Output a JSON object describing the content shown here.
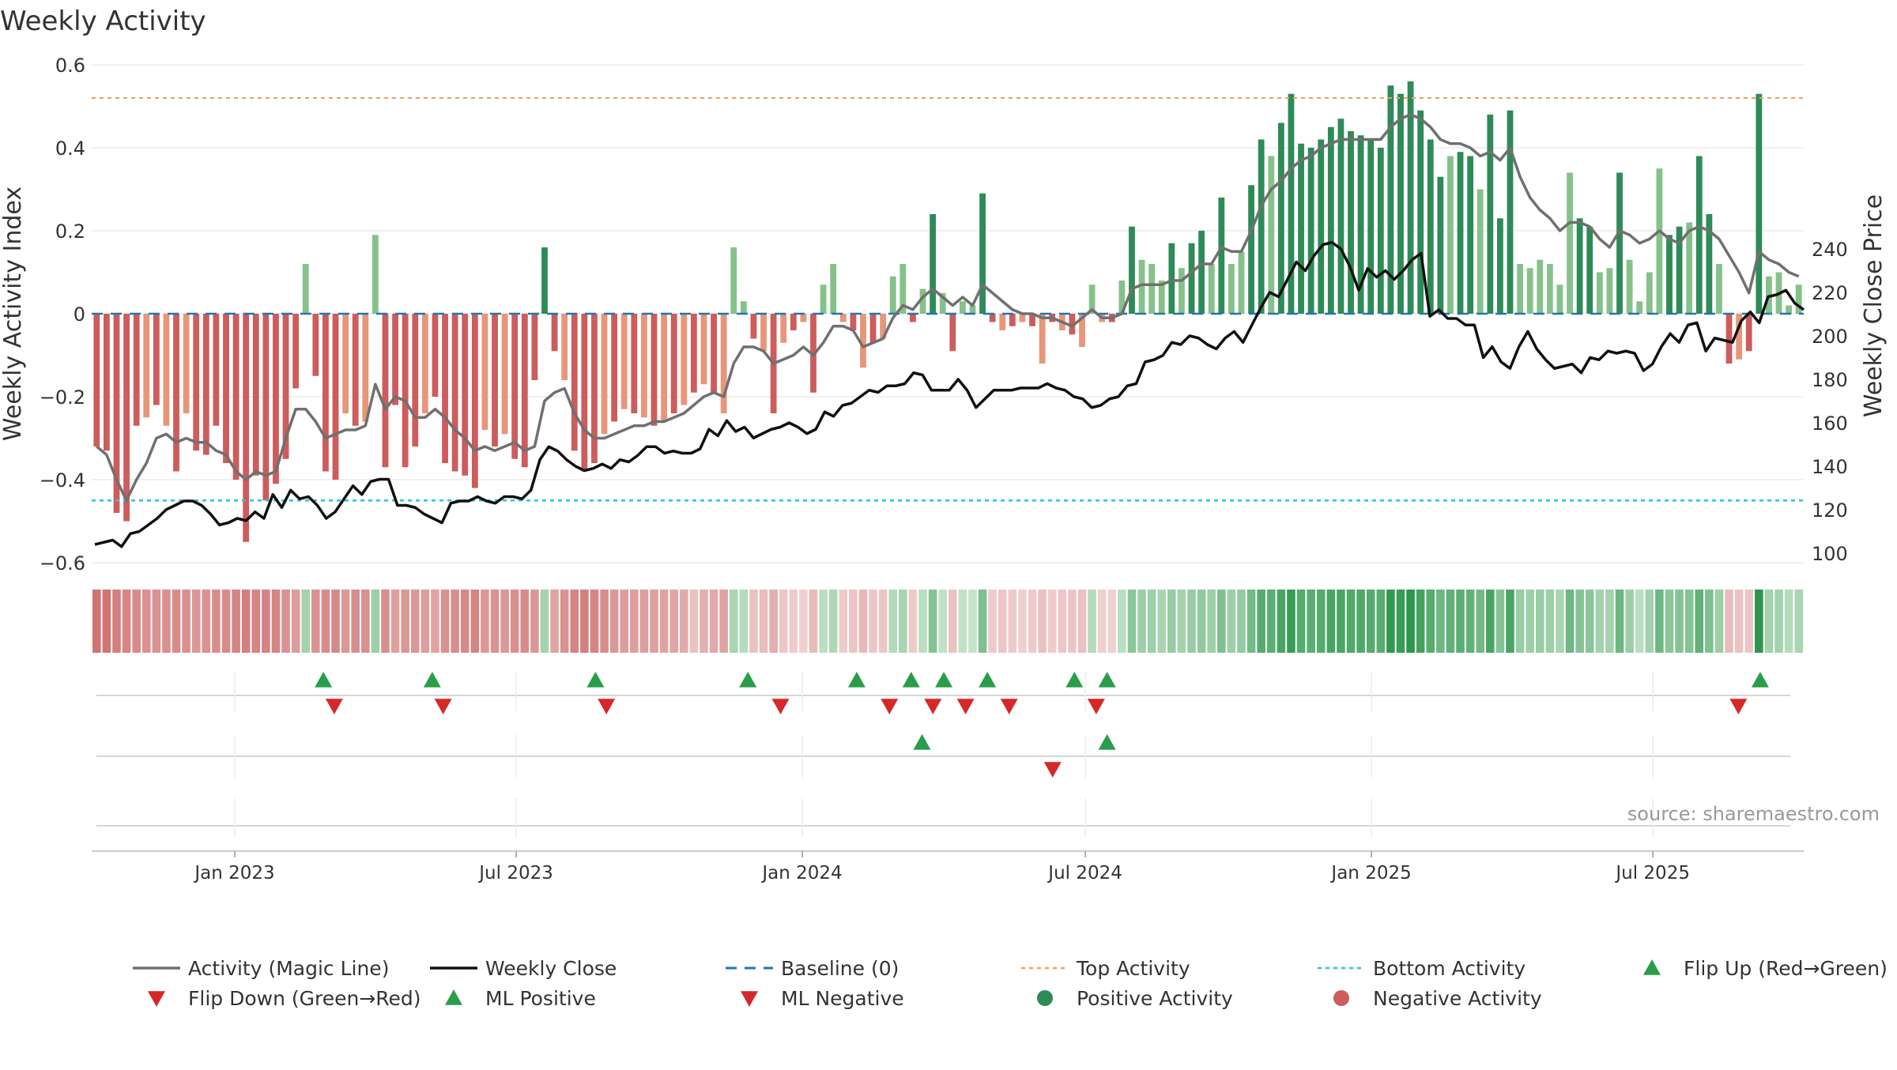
{
  "chart_data": {
    "type": "bar",
    "title": "Weekly Activity",
    "ylabel": "Weekly Activity Index",
    "y2label": "Weekly Close Price",
    "ylim": [
      -0.6,
      0.6
    ],
    "y2lim": [
      100,
      240
    ],
    "yticks": [
      "0.6",
      "0.4",
      "0.2",
      "0",
      "−0.2",
      "−0.4",
      "−0.6"
    ],
    "y2ticks": [
      "240",
      "220",
      "200",
      "180",
      "160",
      "140",
      "120",
      "100"
    ],
    "x_ticks": [
      "Jan 2023",
      "Jul 2023",
      "Jan 2024",
      "Jul 2024",
      "Jan 2025",
      "Jul 2025"
    ],
    "x_start": "2022-10-01",
    "x_end": "2025-10-06",
    "top_activity": 0.52,
    "bottom_activity": -0.45,
    "source_text": "source: sharemaestro.com",
    "colors": {
      "pos_dark": "#2e8b57",
      "pos_light": "#86c18b",
      "neg_dark": "#cd5c5c",
      "neg_light": "#e8967a",
      "magic_line": "#707070",
      "close_line": "#111111",
      "baseline": "#1f77b4",
      "top": "#f0a060",
      "bottom": "#26c6da",
      "flip_up": "#2a9d4a",
      "flip_down": "#d62828"
    },
    "activity": [
      -0.32,
      -0.33,
      -0.48,
      -0.5,
      -0.27,
      -0.25,
      -0.22,
      -0.27,
      -0.38,
      -0.24,
      -0.33,
      -0.34,
      -0.27,
      -0.36,
      -0.4,
      -0.55,
      -0.39,
      -0.45,
      -0.41,
      -0.35,
      -0.18,
      0.12,
      -0.15,
      -0.38,
      -0.4,
      -0.24,
      -0.27,
      -0.26,
      0.19,
      -0.37,
      -0.22,
      -0.37,
      -0.32,
      -0.24,
      -0.2,
      -0.36,
      -0.38,
      -0.39,
      -0.42,
      -0.28,
      -0.32,
      -0.29,
      -0.35,
      -0.37,
      -0.16,
      0.16,
      -0.09,
      -0.16,
      -0.33,
      -0.38,
      -0.36,
      -0.29,
      -0.26,
      -0.23,
      -0.24,
      -0.25,
      -0.27,
      -0.26,
      -0.24,
      -0.22,
      -0.19,
      -0.17,
      -0.19,
      -0.24,
      0.16,
      0.03,
      -0.06,
      -0.09,
      -0.24,
      -0.07,
      -0.04,
      -0.02,
      -0.19,
      0.07,
      0.12,
      -0.02,
      -0.04,
      -0.13,
      -0.07,
      -0.06,
      0.09,
      0.12,
      -0.02,
      0.06,
      0.24,
      0.05,
      -0.09,
      0.03,
      0.02,
      0.29,
      -0.02,
      -0.04,
      -0.03,
      -0.02,
      -0.03,
      -0.12,
      -0.02,
      -0.04,
      -0.05,
      -0.08,
      0.07,
      -0.02,
      -0.02,
      0.08,
      0.21,
      0.13,
      0.12,
      0.08,
      0.17,
      0.11,
      0.17,
      0.2,
      0.12,
      0.28,
      0.12,
      0.15,
      0.31,
      0.42,
      0.38,
      0.46,
      0.53,
      0.41,
      0.4,
      0.42,
      0.45,
      0.47,
      0.44,
      0.43,
      0.42,
      0.4,
      0.55,
      0.53,
      0.56,
      0.49,
      0.42,
      0.33,
      0.38,
      0.39,
      0.38,
      0.3,
      0.48,
      0.23,
      0.49,
      0.12,
      0.11,
      0.13,
      0.12,
      0.07,
      0.34,
      0.23,
      0.21,
      0.1,
      0.11,
      0.34,
      0.13,
      0.03,
      0.1,
      0.35,
      0.19,
      0.21,
      0.22,
      0.38,
      0.24,
      0.12,
      -0.12,
      -0.11,
      -0.09,
      0.53,
      0.09,
      0.1,
      0.02,
      0.07
    ],
    "magic_line": [
      -0.32,
      -0.34,
      -0.4,
      -0.45,
      -0.4,
      -0.36,
      -0.3,
      -0.29,
      -0.31,
      -0.3,
      -0.31,
      -0.31,
      -0.33,
      -0.34,
      -0.38,
      -0.4,
      -0.38,
      -0.39,
      -0.38,
      -0.3,
      -0.23,
      -0.23,
      -0.26,
      -0.3,
      -0.29,
      -0.28,
      -0.28,
      -0.27,
      -0.17,
      -0.23,
      -0.2,
      -0.21,
      -0.25,
      -0.25,
      -0.23,
      -0.25,
      -0.28,
      -0.3,
      -0.33,
      -0.32,
      -0.33,
      -0.32,
      -0.31,
      -0.33,
      -0.32,
      -0.21,
      -0.19,
      -0.18,
      -0.24,
      -0.28,
      -0.3,
      -0.3,
      -0.29,
      -0.28,
      -0.27,
      -0.27,
      -0.26,
      -0.26,
      -0.25,
      -0.24,
      -0.22,
      -0.2,
      -0.19,
      -0.2,
      -0.12,
      -0.08,
      -0.08,
      -0.09,
      -0.12,
      -0.11,
      -0.1,
      -0.08,
      -0.1,
      -0.07,
      -0.03,
      -0.03,
      -0.04,
      -0.08,
      -0.07,
      -0.06,
      -0.01,
      0.02,
      0.01,
      0.04,
      0.06,
      0.04,
      0.02,
      0.04,
      0.02,
      0.07,
      0.05,
      0.03,
      0.01,
      0.0,
      0.0,
      -0.01,
      -0.01,
      -0.02,
      -0.03,
      -0.01,
      0.01,
      -0.01,
      -0.01,
      0.0,
      0.06,
      0.07,
      0.07,
      0.07,
      0.08,
      0.08,
      0.1,
      0.12,
      0.12,
      0.16,
      0.15,
      0.15,
      0.2,
      0.26,
      0.3,
      0.32,
      0.35,
      0.37,
      0.38,
      0.4,
      0.41,
      0.42,
      0.42,
      0.42,
      0.42,
      0.42,
      0.45,
      0.47,
      0.48,
      0.47,
      0.45,
      0.42,
      0.41,
      0.41,
      0.4,
      0.38,
      0.39,
      0.37,
      0.4,
      0.33,
      0.28,
      0.25,
      0.23,
      0.2,
      0.22,
      0.22,
      0.21,
      0.18,
      0.16,
      0.2,
      0.19,
      0.17,
      0.18,
      0.2,
      0.18,
      0.17,
      0.2,
      0.21,
      0.2,
      0.18,
      0.14,
      0.1,
      0.05,
      0.15,
      0.13,
      0.12,
      0.1,
      0.09
    ],
    "weekly_close": [
      104,
      105,
      106,
      103,
      109,
      110,
      113,
      116,
      120,
      122,
      124,
      124,
      122,
      118,
      113,
      114,
      116,
      115,
      119,
      116,
      127,
      121,
      129,
      125,
      126,
      122,
      116,
      119,
      125,
      131,
      127,
      133,
      134,
      134,
      122,
      122,
      121,
      118,
      116,
      114,
      123,
      124,
      124,
      126,
      124,
      123,
      126,
      126,
      125,
      129,
      143,
      149,
      147,
      143,
      140,
      138,
      139,
      141,
      139,
      143,
      142,
      145,
      149,
      149,
      146,
      147,
      146,
      146,
      148,
      157,
      154,
      161,
      156,
      158,
      153,
      155,
      157,
      158,
      160,
      158,
      155,
      157,
      165,
      163,
      168,
      169,
      172,
      175,
      174,
      177,
      177,
      178,
      183,
      182,
      175,
      175,
      175,
      180,
      175,
      167,
      171,
      175,
      175,
      175,
      176,
      176,
      176,
      178,
      176,
      175,
      172,
      171,
      167,
      168,
      171,
      172,
      177,
      178,
      188,
      189,
      191,
      197,
      196,
      200,
      199,
      196,
      194,
      199,
      202,
      197,
      205,
      213,
      220,
      218,
      226,
      234,
      230,
      237,
      242,
      243,
      240,
      232,
      221,
      231,
      227,
      230,
      226,
      230,
      235,
      238,
      209,
      212,
      208,
      208,
      205,
      205,
      190,
      195,
      188,
      185,
      195,
      202,
      194,
      189,
      185,
      186,
      187,
      183,
      190,
      189,
      193,
      192,
      193,
      192,
      184,
      187,
      195,
      201,
      197,
      205,
      206,
      193,
      199,
      198,
      197,
      207,
      211,
      206,
      218,
      219,
      221,
      215,
      212
    ],
    "gradient_strip": [
      -0.45,
      -0.45,
      -0.4,
      -0.38,
      -0.35,
      -0.32,
      -0.32,
      -0.33,
      -0.35,
      -0.33,
      -0.3,
      -0.32,
      -0.34,
      -0.35,
      -0.38,
      -0.4,
      -0.38,
      -0.39,
      -0.38,
      -0.32,
      -0.28,
      0.2,
      -0.32,
      -0.35,
      -0.36,
      -0.3,
      -0.34,
      -0.33,
      0.22,
      -0.34,
      -0.26,
      -0.3,
      -0.3,
      -0.28,
      -0.25,
      -0.32,
      -0.34,
      -0.36,
      -0.38,
      -0.3,
      -0.32,
      -0.3,
      -0.33,
      -0.35,
      -0.3,
      0.2,
      -0.25,
      -0.32,
      -0.38,
      -0.4,
      -0.38,
      -0.34,
      -0.3,
      -0.28,
      -0.27,
      -0.27,
      -0.26,
      -0.25,
      -0.24,
      -0.22,
      -0.12,
      -0.2,
      -0.22,
      -0.25,
      0.18,
      0.14,
      -0.12,
      -0.14,
      -0.2,
      -0.1,
      -0.08,
      -0.06,
      -0.15,
      0.12,
      0.16,
      -0.08,
      -0.1,
      -0.16,
      -0.1,
      -0.1,
      0.15,
      0.18,
      -0.08,
      0.12,
      0.3,
      0.1,
      -0.12,
      0.1,
      0.08,
      0.32,
      -0.08,
      -0.1,
      -0.08,
      -0.06,
      -0.08,
      -0.12,
      -0.08,
      -0.1,
      -0.1,
      -0.12,
      0.14,
      -0.06,
      -0.05,
      0.12,
      0.28,
      0.22,
      0.22,
      0.18,
      0.24,
      0.2,
      0.24,
      0.26,
      0.22,
      0.32,
      0.22,
      0.25,
      0.36,
      0.46,
      0.44,
      0.5,
      0.56,
      0.46,
      0.44,
      0.46,
      0.5,
      0.5,
      0.48,
      0.48,
      0.46,
      0.45,
      0.58,
      0.56,
      0.6,
      0.52,
      0.46,
      0.38,
      0.42,
      0.44,
      0.42,
      0.36,
      0.5,
      0.3,
      0.5,
      0.24,
      0.22,
      0.24,
      0.22,
      0.18,
      0.38,
      0.3,
      0.28,
      0.2,
      0.2,
      0.38,
      0.22,
      0.12,
      0.2,
      0.38,
      0.28,
      0.3,
      0.3,
      0.42,
      0.32,
      0.22,
      -0.14,
      -0.12,
      -0.1,
      0.6,
      0.2,
      0.2,
      0.14,
      0.18
    ],
    "flip_up_dates": [
      "2023-02-27",
      "2023-05-08",
      "2023-08-21",
      "2023-11-27",
      "2024-02-05",
      "2024-03-11",
      "2024-04-01",
      "2024-04-29",
      "2024-06-24",
      "2024-07-15",
      "2025-09-08"
    ],
    "flip_down_dates": [
      "2023-03-06",
      "2023-05-15",
      "2023-08-28",
      "2023-12-18",
      "2024-02-26",
      "2024-03-25",
      "2024-04-15",
      "2024-05-13",
      "2024-07-08",
      "2025-08-25"
    ],
    "ml_positive_dates": [
      "2024-03-18",
      "2024-07-15"
    ],
    "ml_negative_dates": [
      "2024-06-10"
    ],
    "legend": [
      {
        "label": "Activity (Magic Line)",
        "kind": "line",
        "style": "magic_line"
      },
      {
        "label": "Weekly Close",
        "kind": "line",
        "style": "close_line"
      },
      {
        "label": "Baseline (0)",
        "kind": "dash",
        "style": "baseline"
      },
      {
        "label": "Top Activity",
        "kind": "dot",
        "style": "top"
      },
      {
        "label": "Bottom Activity",
        "kind": "dot",
        "style": "bottom"
      },
      {
        "label": "Flip Up (Red→Green)",
        "kind": "tri_up",
        "style": "flip_up"
      },
      {
        "label": "Flip Down (Green→Red)",
        "kind": "tri_down",
        "style": "flip_down"
      },
      {
        "label": "ML Positive",
        "kind": "tri_up",
        "style": "flip_up"
      },
      {
        "label": "ML Negative",
        "kind": "tri_down",
        "style": "flip_down"
      },
      {
        "label": "Positive Activity",
        "kind": "circle",
        "style": "pos_dark"
      },
      {
        "label": "Negative Activity",
        "kind": "circle",
        "style": "neg_dark"
      }
    ]
  }
}
